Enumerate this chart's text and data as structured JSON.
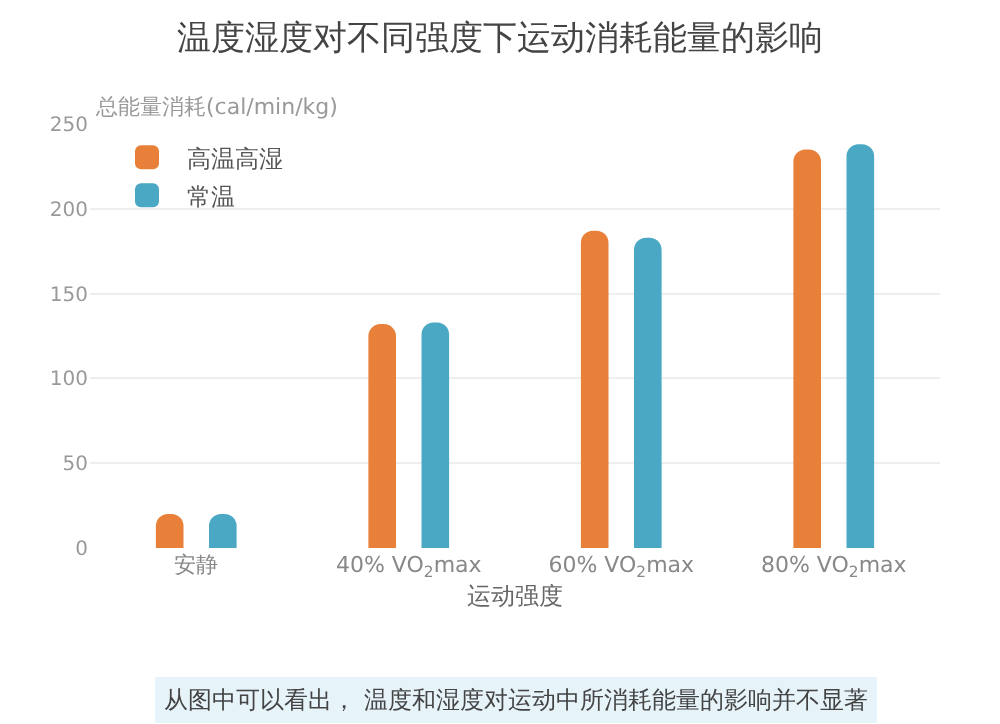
{
  "chart_data": {
    "type": "bar",
    "title": "温度湿度对不同强度下运动消耗能量的影响",
    "ylabel": "总能量消耗(cal/min/kg)",
    "xlabel": "运动强度",
    "categories": [
      "安静",
      "40% VO$_{2}$max",
      "60% VO$_{2}$max",
      "80% VO$_{2}$max"
    ],
    "series": [
      {
        "name": "高温高湿",
        "color": "#e8803a",
        "values": [
          20,
          132,
          187,
          235
        ]
      },
      {
        "name": "常温",
        "color": "#4aa8c4",
        "values": [
          20,
          133,
          183,
          238
        ]
      }
    ],
    "ylim": [
      0,
      250
    ],
    "yticks": [
      0,
      50,
      100,
      150,
      200,
      250
    ],
    "grid": "y",
    "legend": "top left",
    "annotations": [
      "从图中可以看出， 温度和湿度对运动中所消耗能量的影响并不显著"
    ]
  }
}
